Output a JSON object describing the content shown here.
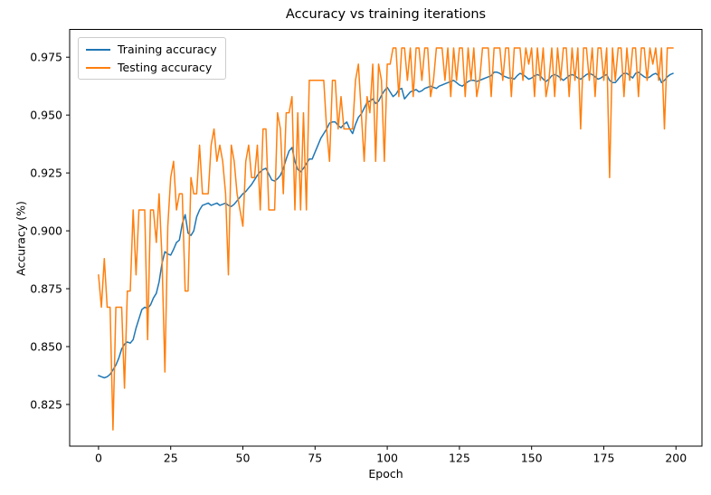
{
  "chart_data": {
    "type": "line",
    "title": "Accuracy vs training iterations",
    "xlabel": "Epoch",
    "ylabel": "Accuracy (%)",
    "xlim": [
      -10,
      209
    ],
    "ylim": [
      0.807,
      0.987
    ],
    "x_ticks": [
      0,
      25,
      50,
      75,
      100,
      125,
      150,
      175,
      200
    ],
    "y_ticks": [
      0.825,
      0.85,
      0.875,
      0.9,
      0.925,
      0.95,
      0.975
    ],
    "y_tick_labels": [
      "0.825",
      "0.850",
      "0.875",
      "0.900",
      "0.925",
      "0.950",
      "0.975"
    ],
    "grid": false,
    "legend_position": "upper left",
    "n_points": 200,
    "axis_color": "#000000",
    "legend_border_color": "#cccccc",
    "series": [
      {
        "name": "Training accuracy",
        "color": "#1f77b4",
        "values": [
          0.8375,
          0.837,
          0.8365,
          0.837,
          0.838,
          0.84,
          0.842,
          0.845,
          0.849,
          0.851,
          0.852,
          0.8515,
          0.853,
          0.858,
          0.862,
          0.866,
          0.867,
          0.8665,
          0.868,
          0.871,
          0.873,
          0.878,
          0.886,
          0.891,
          0.89,
          0.8895,
          0.892,
          0.895,
          0.896,
          0.903,
          0.907,
          0.899,
          0.898,
          0.9,
          0.906,
          0.909,
          0.911,
          0.9115,
          0.912,
          0.911,
          0.9115,
          0.912,
          0.911,
          0.9115,
          0.912,
          0.911,
          0.9105,
          0.9115,
          0.913,
          0.9145,
          0.916,
          0.917,
          0.9185,
          0.92,
          0.922,
          0.924,
          0.9255,
          0.9265,
          0.927,
          0.9245,
          0.922,
          0.9215,
          0.9225,
          0.924,
          0.927,
          0.931,
          0.9345,
          0.936,
          0.93,
          0.9265,
          0.9255,
          0.927,
          0.929,
          0.931,
          0.931,
          0.934,
          0.937,
          0.94,
          0.942,
          0.944,
          0.9465,
          0.947,
          0.947,
          0.9455,
          0.9445,
          0.946,
          0.947,
          0.944,
          0.942,
          0.946,
          0.949,
          0.9505,
          0.953,
          0.9555,
          0.956,
          0.957,
          0.955,
          0.956,
          0.9585,
          0.9605,
          0.962,
          0.96,
          0.958,
          0.959,
          0.961,
          0.9615,
          0.957,
          0.9585,
          0.96,
          0.9605,
          0.961,
          0.96,
          0.9605,
          0.9615,
          0.962,
          0.9625,
          0.962,
          0.9615,
          0.9625,
          0.963,
          0.9635,
          0.964,
          0.9645,
          0.965,
          0.964,
          0.963,
          0.9625,
          0.9635,
          0.9645,
          0.965,
          0.965,
          0.9645,
          0.965,
          0.9655,
          0.966,
          0.9665,
          0.967,
          0.9685,
          0.9685,
          0.968,
          0.967,
          0.9665,
          0.966,
          0.966,
          0.9655,
          0.967,
          0.968,
          0.9675,
          0.9665,
          0.9655,
          0.966,
          0.967,
          0.9675,
          0.967,
          0.9655,
          0.9645,
          0.9655,
          0.967,
          0.9675,
          0.967,
          0.966,
          0.965,
          0.966,
          0.967,
          0.9675,
          0.967,
          0.966,
          0.9655,
          0.9665,
          0.9675,
          0.968,
          0.9675,
          0.9665,
          0.9655,
          0.966,
          0.967,
          0.9675,
          0.965,
          0.964,
          0.964,
          0.9655,
          0.967,
          0.968,
          0.968,
          0.967,
          0.966,
          0.968,
          0.9685,
          0.9675,
          0.9665,
          0.966,
          0.9665,
          0.9675,
          0.968,
          0.967,
          0.964,
          0.965,
          0.9665,
          0.9675,
          0.968
        ]
      },
      {
        "name": "Testing accuracy",
        "color": "#ff7f0e",
        "values": [
          0.881,
          0.867,
          0.888,
          0.867,
          0.867,
          0.814,
          0.867,
          0.867,
          0.867,
          0.832,
          0.874,
          0.874,
          0.909,
          0.881,
          0.909,
          0.909,
          0.909,
          0.853,
          0.909,
          0.909,
          0.895,
          0.916,
          0.888,
          0.839,
          0.902,
          0.923,
          0.93,
          0.909,
          0.916,
          0.916,
          0.874,
          0.874,
          0.923,
          0.916,
          0.916,
          0.937,
          0.916,
          0.916,
          0.916,
          0.937,
          0.944,
          0.93,
          0.937,
          0.93,
          0.916,
          0.881,
          0.937,
          0.93,
          0.916,
          0.909,
          0.902,
          0.93,
          0.937,
          0.923,
          0.923,
          0.937,
          0.909,
          0.944,
          0.944,
          0.909,
          0.909,
          0.909,
          0.951,
          0.944,
          0.916,
          0.951,
          0.951,
          0.958,
          0.909,
          0.951,
          0.909,
          0.951,
          0.909,
          0.965,
          0.965,
          0.965,
          0.965,
          0.965,
          0.965,
          0.944,
          0.93,
          0.965,
          0.965,
          0.944,
          0.958,
          0.944,
          0.944,
          0.944,
          0.944,
          0.965,
          0.972,
          0.951,
          0.93,
          0.958,
          0.951,
          0.972,
          0.93,
          0.972,
          0.965,
          0.93,
          0.972,
          0.972,
          0.979,
          0.979,
          0.958,
          0.979,
          0.979,
          0.965,
          0.979,
          0.958,
          0.979,
          0.979,
          0.965,
          0.979,
          0.979,
          0.958,
          0.965,
          0.979,
          0.979,
          0.979,
          0.965,
          0.979,
          0.958,
          0.979,
          0.965,
          0.979,
          0.979,
          0.958,
          0.979,
          0.965,
          0.979,
          0.958,
          0.965,
          0.979,
          0.979,
          0.979,
          0.958,
          0.979,
          0.979,
          0.979,
          0.965,
          0.979,
          0.979,
          0.958,
          0.979,
          0.979,
          0.979,
          0.965,
          0.979,
          0.972,
          0.979,
          0.958,
          0.979,
          0.965,
          0.979,
          0.958,
          0.965,
          0.979,
          0.958,
          0.979,
          0.965,
          0.979,
          0.979,
          0.958,
          0.979,
          0.965,
          0.979,
          0.944,
          0.979,
          0.979,
          0.965,
          0.979,
          0.958,
          0.979,
          0.979,
          0.965,
          0.979,
          0.923,
          0.979,
          0.965,
          0.979,
          0.979,
          0.958,
          0.979,
          0.965,
          0.979,
          0.979,
          0.958,
          0.979,
          0.979,
          0.965,
          0.979,
          0.972,
          0.979,
          0.965,
          0.979,
          0.944,
          0.979,
          0.979,
          0.979
        ]
      }
    ]
  }
}
